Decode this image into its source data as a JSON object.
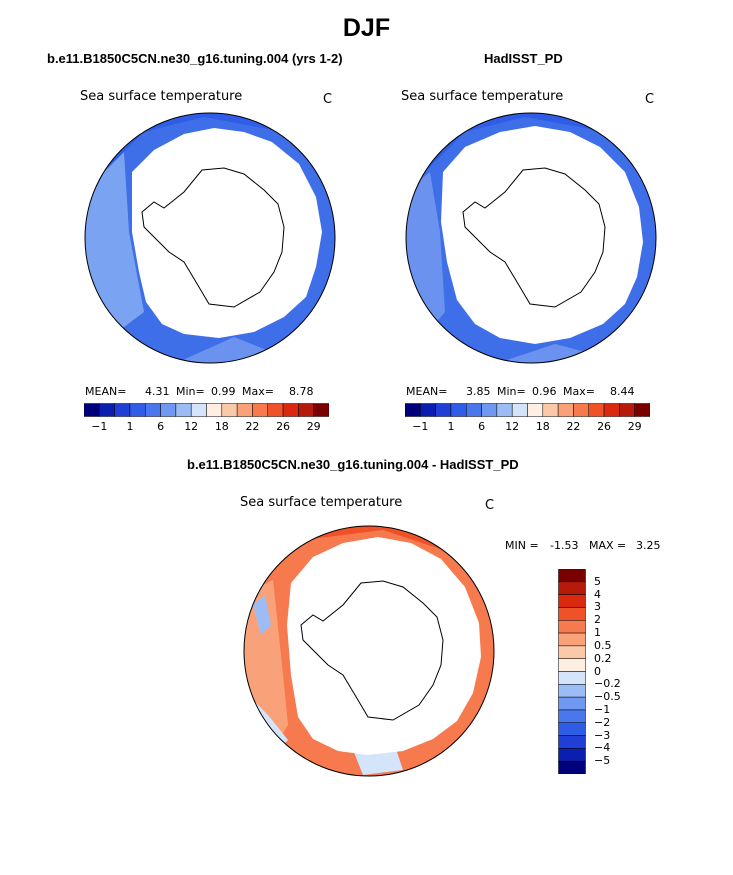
{
  "page_title": "DJF",
  "panels": [
    {
      "title": "b.e11.B1850C5CN.ne30_g16.tuning.004 (yrs 1-2)",
      "variable": "Sea surface temperature",
      "units": "C",
      "mean_label": "MEAN=",
      "mean": "4.31",
      "min_label": "Min=",
      "min": "0.99",
      "max_label": "Max=",
      "max": "8.78"
    },
    {
      "title": "HadISST_PD",
      "variable": "Sea surface temperature",
      "units": "C",
      "mean_label": "MEAN=",
      "mean": "3.85",
      "min_label": "Min=",
      "min": "0.96",
      "max_label": "Max=",
      "max": "8.44"
    }
  ],
  "diff_panel": {
    "title": "b.e11.B1850C5CN.ne30_g16.tuning.004 - HadISST_PD",
    "variable": "Sea surface temperature",
    "units": "C",
    "min_label": "MIN =",
    "min": "-1.53",
    "max_label": "MAX =",
    "max": "3.25"
  },
  "chart_data": [
    {
      "type": "heatmap",
      "title": "b.e11.B1850C5CN.ne30_g16.tuning.004 (yrs 1-2)",
      "subtitle": "Sea surface temperature",
      "units": "C",
      "projection": "south polar stereographic",
      "stats": {
        "mean": 4.31,
        "min": 0.99,
        "max": 8.78
      },
      "colorbar": {
        "orientation": "horizontal",
        "tick_labels": [
          "-1",
          "1",
          "6",
          "12",
          "18",
          "22",
          "26",
          "29"
        ],
        "colors": [
          "#00007a",
          "#0a1fb0",
          "#1f3fd6",
          "#2f5de8",
          "#4a78ec",
          "#6f98f0",
          "#9dbcf5",
          "#d4e4fa",
          "#ffeee2",
          "#fcc9a8",
          "#f9a27a",
          "#f67a4e",
          "#ef5128",
          "#d92a10",
          "#b51a0a",
          "#7a0000"
        ]
      }
    },
    {
      "type": "heatmap",
      "title": "HadISST_PD",
      "subtitle": "Sea surface temperature",
      "units": "C",
      "projection": "south polar stereographic",
      "stats": {
        "mean": 3.85,
        "min": 0.96,
        "max": 8.44
      },
      "colorbar": {
        "orientation": "horizontal",
        "tick_labels": [
          "-1",
          "1",
          "6",
          "12",
          "18",
          "22",
          "26",
          "29"
        ],
        "colors": [
          "#00007a",
          "#0a1fb0",
          "#1f3fd6",
          "#2f5de8",
          "#4a78ec",
          "#6f98f0",
          "#9dbcf5",
          "#d4e4fa",
          "#ffeee2",
          "#fcc9a8",
          "#f9a27a",
          "#f67a4e",
          "#ef5128",
          "#d92a10",
          "#b51a0a",
          "#7a0000"
        ]
      }
    },
    {
      "type": "heatmap",
      "title": "b.e11.B1850C5CN.ne30_g16.tuning.004 - HadISST_PD",
      "subtitle": "Sea surface temperature",
      "units": "C",
      "projection": "south polar stereographic",
      "stats": {
        "min": -1.53,
        "max": 3.25
      },
      "colorbar": {
        "orientation": "vertical",
        "tick_labels": [
          "5",
          "4",
          "3",
          "2",
          "1",
          "0.5",
          "0.2",
          "0",
          "-0.2",
          "-0.5",
          "-1",
          "-2",
          "-3",
          "-4",
          "-5"
        ],
        "colors": [
          "#7a0000",
          "#b51a0a",
          "#d92a10",
          "#ef5128",
          "#f67a4e",
          "#f9a27a",
          "#fcc9a8",
          "#ffeee2",
          "#d4e4fa",
          "#9dbcf5",
          "#6f98f0",
          "#4a78ec",
          "#2f5de8",
          "#1f3fd6",
          "#0a1fb0",
          "#00007a"
        ]
      }
    }
  ]
}
